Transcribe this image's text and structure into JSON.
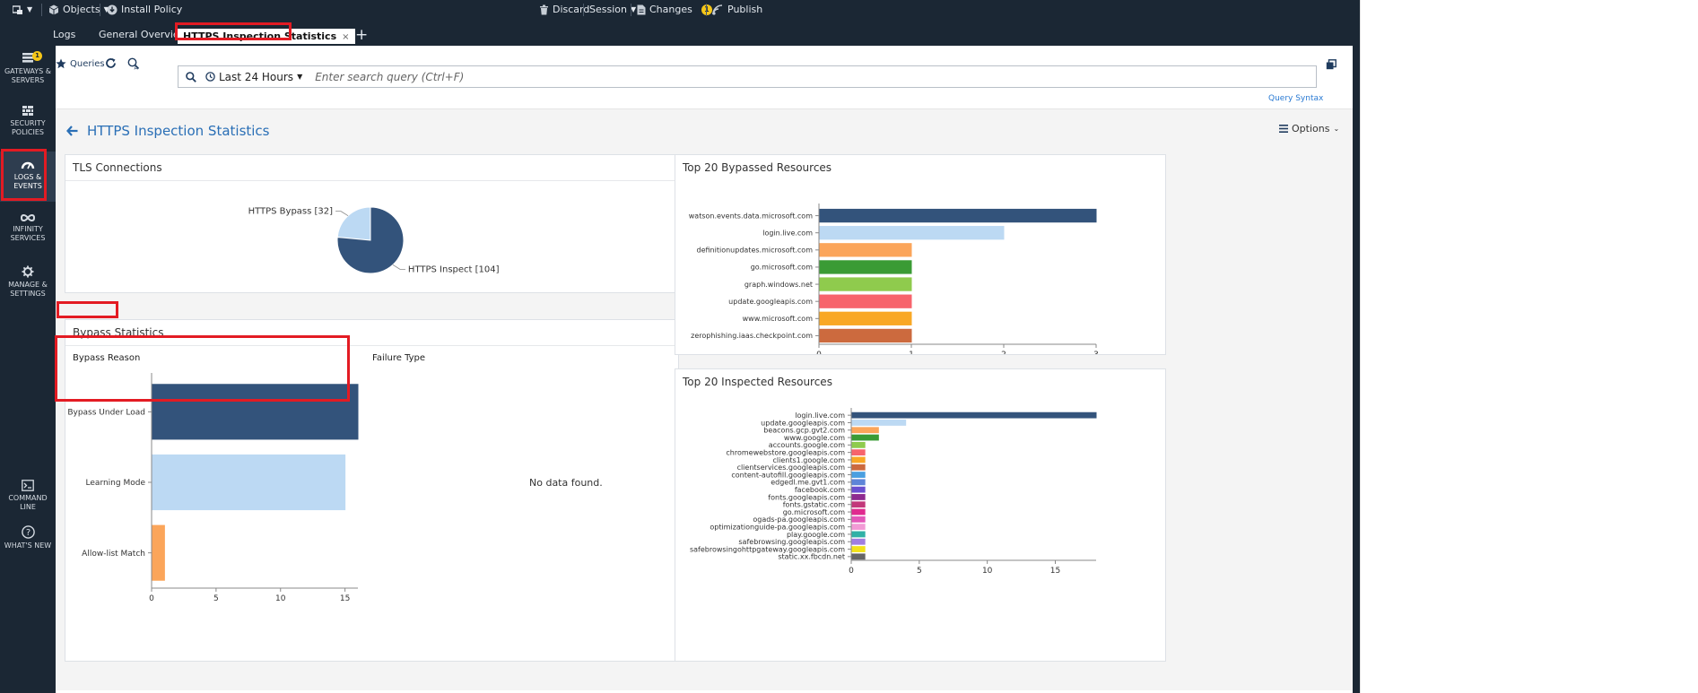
{
  "topbar": {
    "objects_label": "Objects",
    "install_label": "Install Policy",
    "discard_label": "Discard",
    "session_label": "Session",
    "changes_label": "Changes",
    "changes_count": "1",
    "publish_label": "Publish"
  },
  "tabs": [
    {
      "label": "Logs"
    },
    {
      "label": "General Overview"
    },
    {
      "label": "HTTPS Inspection Statistics"
    }
  ],
  "sidebar": {
    "gateways_badge": "1",
    "items": [
      {
        "label": "GATEWAYS & SERVERS"
      },
      {
        "label": "SECURITY POLICIES"
      },
      {
        "label": "LOGS & EVENTS"
      },
      {
        "label": "INFINITY SERVICES"
      },
      {
        "label": "MANAGE & SETTINGS"
      },
      {
        "label": "COMMAND LINE"
      },
      {
        "label": "WHAT'S NEW"
      }
    ]
  },
  "toolbar": {
    "queries_label": "Queries",
    "time_range": "Last 24 Hours",
    "search_placeholder": "Enter search query (Ctrl+F)",
    "query_syntax_label": "Query Syntax"
  },
  "page": {
    "title": "HTTPS Inspection Statistics",
    "options_label": "Options"
  },
  "cards": {
    "tls": {
      "title": "TLS Connections",
      "bypass_label": "HTTPS Bypass [32]",
      "inspect_label": "HTTPS Inspect [104]"
    },
    "bypass_stats": {
      "title": "Bypass Statistics",
      "reason_label": "Bypass Reason",
      "failure_label": "Failure Type",
      "no_data": "No data found."
    },
    "top_bypassed": {
      "title": "Top 20 Bypassed Resources"
    },
    "top_inspected": {
      "title": "Top 20 Inspected Resources"
    }
  },
  "chart_data": [
    {
      "type": "pie",
      "title": "TLS Connections",
      "slices": [
        {
          "name": "HTTPS Bypass",
          "value": 32,
          "label": "HTTPS Bypass [32]",
          "color": "#bcd9f3"
        },
        {
          "name": "HTTPS Inspect",
          "value": 104,
          "label": "HTTPS Inspect [104]",
          "color": "#33537b"
        }
      ]
    },
    {
      "type": "bar",
      "orientation": "horizontal",
      "title": "Bypass Reason",
      "categories": [
        "Bypass Under Load",
        "Learning Mode",
        "Allow-list Match"
      ],
      "values": [
        16,
        15,
        1
      ],
      "colors": [
        "#33537b",
        "#bcd9f3",
        "#fba55a"
      ],
      "xticks": [
        0,
        5,
        10,
        15
      ],
      "xlim": [
        0,
        16
      ]
    },
    {
      "type": "bar",
      "orientation": "horizontal",
      "title": "Top 20 Bypassed Resources",
      "categories": [
        "watson.events.data.microsoft.com",
        "login.live.com",
        "definitionupdates.microsoft.com",
        "go.microsoft.com",
        "graph.windows.net",
        "update.googleapis.com",
        "www.microsoft.com",
        "zerophishing.iaas.checkpoint.com"
      ],
      "values": [
        3,
        2,
        1,
        1,
        1,
        1,
        1,
        1
      ],
      "colors": [
        "#33537b",
        "#bcd9f3",
        "#fba55a",
        "#3a9b35",
        "#8fcb4d",
        "#f7646c",
        "#f9a825",
        "#cc6a3e"
      ],
      "xticks": [
        0,
        1,
        2,
        3
      ],
      "xlim": [
        0,
        3
      ]
    },
    {
      "type": "bar",
      "orientation": "horizontal",
      "title": "Top 20 Inspected Resources",
      "categories": [
        "login.live.com",
        "update.googleapis.com",
        "beacons.gcp.gvt2.com",
        "www.google.com",
        "accounts.google.com",
        "chromewebstore.googleapis.com",
        "clients1.google.com",
        "clientservices.googleapis.com",
        "content-autofill.googleapis.com",
        "edgedl.me.gvt1.com",
        "facebook.com",
        "fonts.googleapis.com",
        "fonts.gstatic.com",
        "go.microsoft.com",
        "ogads-pa.googleapis.com",
        "optimizationguide-pa.googleapis.com",
        "play.google.com",
        "safebrowsing.googleapis.com",
        "safebrowsingohttpgateway.googleapis.com",
        "static.xx.fbcdn.net"
      ],
      "values": [
        18,
        4,
        2,
        2,
        1,
        1,
        1,
        1,
        1,
        1,
        1,
        1,
        1,
        1,
        1,
        1,
        1,
        1,
        1,
        1
      ],
      "colors": [
        "#33537b",
        "#bcd9f3",
        "#fba55a",
        "#3a9b35",
        "#8fcb4d",
        "#f7646c",
        "#f9a825",
        "#cc6a3e",
        "#4a9fe0",
        "#5e85d8",
        "#6a4fd0",
        "#8e2a90",
        "#c2387a",
        "#e02a8f",
        "#e356b8",
        "#f29ad6",
        "#30b1a6",
        "#a07ee0",
        "#f2e21a",
        "#666666"
      ],
      "xticks": [
        0,
        5,
        10,
        15
      ],
      "xlim": [
        0,
        18
      ]
    }
  ]
}
